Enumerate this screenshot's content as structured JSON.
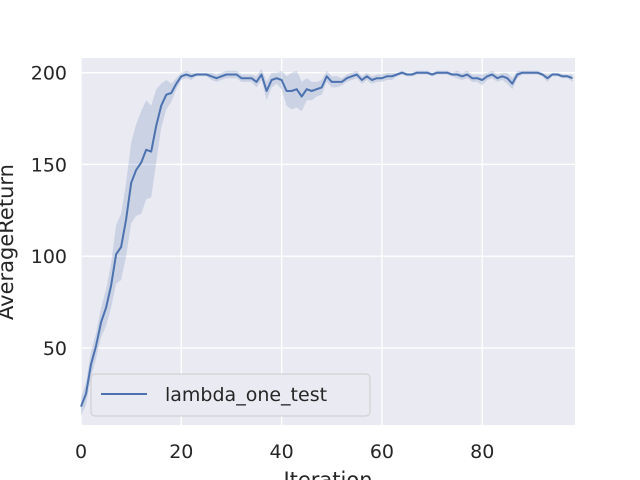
{
  "chart_data": {
    "type": "line",
    "xlabel": "Iteration",
    "ylabel": "AverageReturn",
    "xlim": [
      0,
      98.5
    ],
    "ylim": [
      8,
      208
    ],
    "x_ticks": [
      0,
      20,
      40,
      60,
      80
    ],
    "y_ticks": [
      50,
      100,
      150,
      200
    ],
    "grid": true,
    "legend_position": "lower-left",
    "colors": {
      "line": "#4c72b0",
      "band": "#4c72b0",
      "background": "#eaeaf2",
      "grid": "#ffffff"
    },
    "series": [
      {
        "name": "lambda_one_test",
        "x": [
          0,
          1,
          2,
          3,
          4,
          5,
          6,
          7,
          8,
          9,
          10,
          11,
          12,
          13,
          14,
          15,
          16,
          17,
          18,
          19,
          20,
          21,
          22,
          23,
          24,
          25,
          26,
          27,
          28,
          29,
          30,
          31,
          32,
          33,
          34,
          35,
          36,
          37,
          38,
          39,
          40,
          41,
          42,
          43,
          44,
          45,
          46,
          47,
          48,
          49,
          50,
          51,
          52,
          53,
          54,
          55,
          56,
          57,
          58,
          59,
          60,
          61,
          62,
          63,
          64,
          65,
          66,
          67,
          68,
          69,
          70,
          71,
          72,
          73,
          74,
          75,
          76,
          77,
          78,
          79,
          80,
          81,
          82,
          83,
          84,
          85,
          86,
          87,
          88,
          89,
          90,
          91,
          92,
          93,
          94,
          95,
          96,
          97,
          98
        ],
        "values": [
          18,
          25,
          41,
          51,
          64,
          72,
          84,
          101,
          105,
          120,
          140,
          147,
          151,
          158,
          157,
          171,
          182,
          188,
          189,
          194,
          198,
          199,
          198,
          199,
          199,
          199,
          198,
          197,
          198,
          199,
          199,
          199,
          197,
          197,
          197,
          195,
          199,
          190,
          196,
          197,
          196,
          190,
          190,
          191,
          187,
          191,
          190,
          191,
          192,
          198,
          195,
          195,
          195,
          197,
          198,
          199,
          196,
          198,
          196,
          197,
          197,
          198,
          198,
          199,
          200,
          199,
          199,
          200,
          200,
          200,
          199,
          200,
          200,
          200,
          199,
          199,
          198,
          199,
          197,
          197,
          196,
          198,
          199,
          197,
          198,
          197,
          194,
          199,
          200,
          200,
          200,
          200,
          199,
          197,
          199,
          199,
          198,
          198,
          197
        ],
        "band_half_width": [
          5,
          6,
          7,
          7,
          8,
          10,
          12,
          16,
          18,
          20,
          22,
          25,
          28,
          27,
          25,
          20,
          12,
          8,
          5,
          3,
          2,
          2,
          2,
          1,
          1,
          1,
          2,
          2,
          2,
          2,
          2,
          2,
          2,
          2,
          2,
          3,
          3,
          5,
          4,
          3,
          5,
          8,
          10,
          10,
          8,
          6,
          5,
          4,
          4,
          3,
          3,
          3,
          2,
          2,
          2,
          2,
          2,
          2,
          2,
          2,
          2,
          2,
          2,
          1,
          1,
          1,
          1,
          1,
          1,
          1,
          1,
          1,
          1,
          1,
          1,
          2,
          2,
          2,
          2,
          2,
          3,
          2,
          2,
          2,
          2,
          3,
          3,
          2,
          1,
          1,
          1,
          1,
          1,
          2,
          1,
          1,
          1,
          1,
          2
        ]
      }
    ]
  }
}
